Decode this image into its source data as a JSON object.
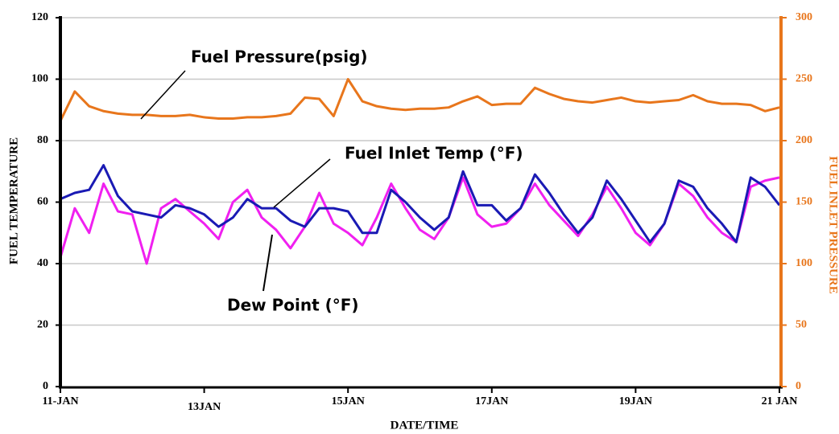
{
  "chart_data": {
    "type": "line",
    "x": [
      11,
      11.2,
      11.4,
      11.6,
      11.8,
      12,
      12.2,
      12.4,
      12.6,
      12.8,
      13,
      13.2,
      13.4,
      13.6,
      13.8,
      14,
      14.2,
      14.4,
      14.6,
      14.8,
      15,
      15.2,
      15.4,
      15.6,
      15.8,
      16,
      16.2,
      16.4,
      16.6,
      16.8,
      17,
      17.2,
      17.4,
      17.6,
      17.8,
      18,
      18.2,
      18.4,
      18.6,
      18.8,
      19,
      19.2,
      19.4,
      19.6,
      19.8,
      20,
      20.2,
      20.4,
      20.6,
      20.8,
      21
    ],
    "xlim": [
      11,
      21
    ],
    "xticks": [
      {
        "value": 11,
        "label": "11-JAN"
      },
      {
        "value": 13,
        "label": "13JAN"
      },
      {
        "value": 15,
        "label": "15JAN"
      },
      {
        "value": 17,
        "label": "17JAN"
      },
      {
        "value": 19,
        "label": "19JAN"
      },
      {
        "value": 21,
        "label": "21 JAN"
      }
    ],
    "xlabel": "DATE/TIME",
    "ylabel": "FUEL TEMPERATURE",
    "y2label": "FUEL INLET PRESSURE",
    "ylim": [
      0,
      120
    ],
    "yticks": [
      0,
      20,
      40,
      60,
      80,
      100,
      120
    ],
    "y2lim": [
      0,
      300
    ],
    "y2ticks": [
      0,
      50,
      100,
      150,
      200,
      250,
      300
    ],
    "grid": true,
    "series": [
      {
        "name": "Fuel Pressure(psig)",
        "color": "#e8761c",
        "axis": "y2",
        "values": [
          216,
          240,
          228,
          224,
          222,
          221,
          221,
          220,
          220,
          221,
          219,
          218,
          218,
          219,
          219,
          220,
          222,
          235,
          234,
          220,
          250,
          232,
          228,
          226,
          225,
          226,
          226,
          227,
          232,
          236,
          229,
          230,
          230,
          243,
          238,
          234,
          232,
          231,
          233,
          235,
          232,
          231,
          232,
          233,
          237,
          232,
          230,
          230,
          229,
          224,
          227
        ]
      },
      {
        "name": "Fuel Inlet Temp (°F)",
        "color": "#1a1ab4",
        "values": [
          61,
          63,
          64,
          72,
          62,
          57,
          56,
          55,
          59,
          58,
          56,
          52,
          55,
          61,
          58,
          58,
          54,
          52,
          58,
          58,
          57,
          50,
          50,
          64,
          60,
          55,
          51,
          55,
          70,
          59,
          59,
          54,
          58,
          69,
          63,
          56,
          50,
          55,
          67,
          61,
          54,
          47,
          53,
          67,
          65,
          58,
          53,
          47,
          68,
          65,
          59
        ]
      },
      {
        "name": "Dew Point (°F)",
        "color": "#f020f0",
        "values": [
          42,
          58,
          50,
          66,
          57,
          56,
          40,
          58,
          61,
          57,
          53,
          48,
          60,
          64,
          55,
          51,
          45,
          52,
          63,
          53,
          50,
          46,
          55,
          66,
          58,
          51,
          48,
          55,
          68,
          56,
          52,
          53,
          58,
          66,
          59,
          54,
          49,
          56,
          65,
          58,
          50,
          46,
          53,
          66,
          62,
          55,
          50,
          47,
          65,
          67,
          68
        ]
      }
    ]
  }
}
